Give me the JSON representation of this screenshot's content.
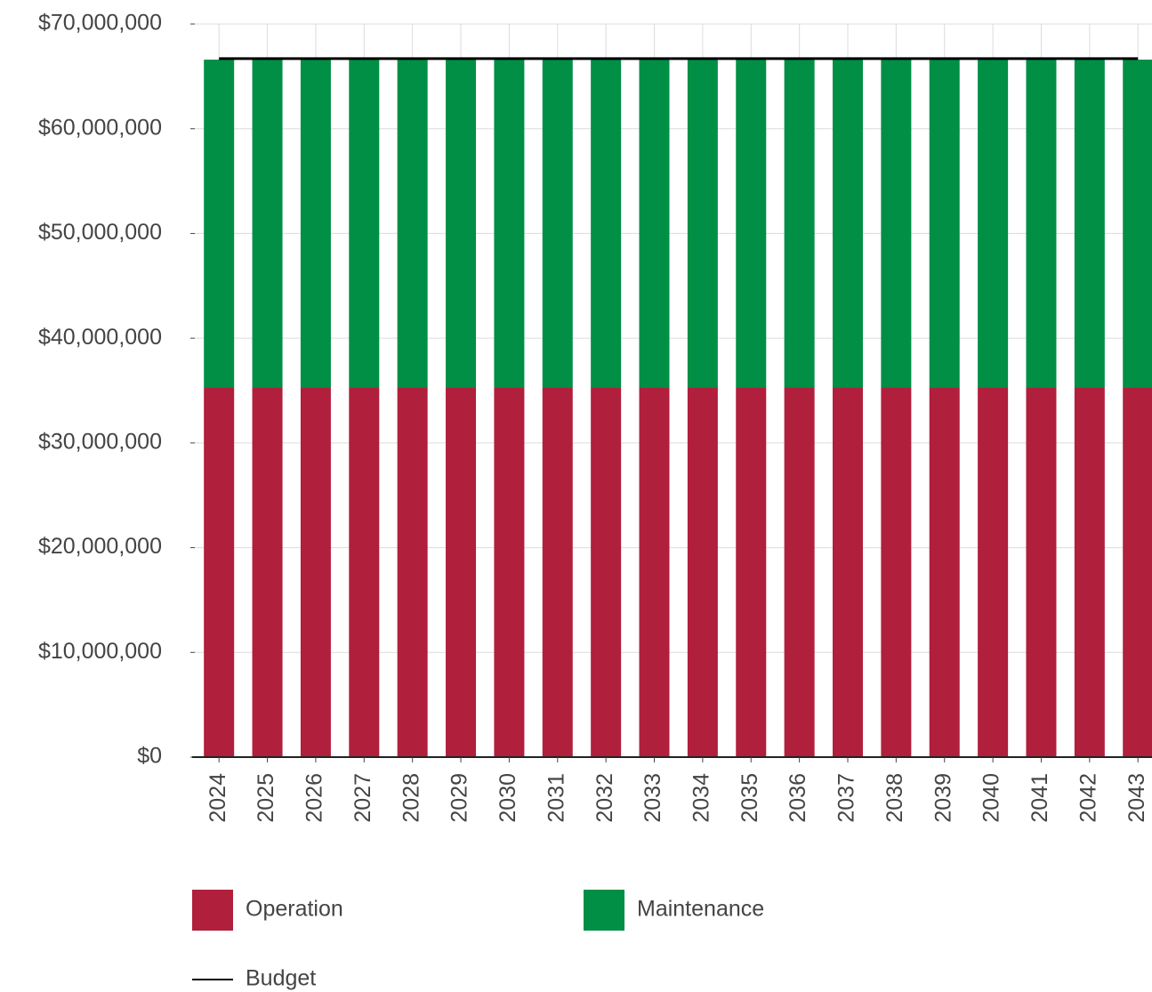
{
  "chart_data": {
    "type": "bar",
    "stacked": true,
    "categories": [
      "2024",
      "2025",
      "2026",
      "2027",
      "2028",
      "2029",
      "2030",
      "2031",
      "2032",
      "2033",
      "2034",
      "2035",
      "2036",
      "2037",
      "2038",
      "2039",
      "2040",
      "2041",
      "2042",
      "2043"
    ],
    "series": [
      {
        "name": "Operation",
        "color": "#b01f3c",
        "values": [
          35300000,
          35300000,
          35300000,
          35300000,
          35300000,
          35300000,
          35300000,
          35300000,
          35300000,
          35300000,
          35300000,
          35300000,
          35300000,
          35300000,
          35300000,
          35300000,
          35300000,
          35300000,
          35300000,
          35300000
        ]
      },
      {
        "name": "Maintenance",
        "color": "#008f45",
        "values": [
          31300000,
          31300000,
          31300000,
          31300000,
          31300000,
          31300000,
          31300000,
          31300000,
          31300000,
          31300000,
          31300000,
          31300000,
          31300000,
          31300000,
          31300000,
          31300000,
          31300000,
          31300000,
          31300000,
          31300000
        ]
      },
      {
        "name": "Budget",
        "type": "line",
        "color": "#000000",
        "values": [
          66700000,
          66700000,
          66700000,
          66700000,
          66700000,
          66700000,
          66700000,
          66700000,
          66700000,
          66700000,
          66700000,
          66700000,
          66700000,
          66700000,
          66700000,
          66700000,
          66700000,
          66700000,
          66700000,
          66700000
        ]
      }
    ],
    "ylim": [
      0,
      70000000
    ],
    "yticks": [
      {
        "value": 0,
        "label": "$0"
      },
      {
        "value": 10000000,
        "label": "$10,000,000"
      },
      {
        "value": 20000000,
        "label": "$20,000,000"
      },
      {
        "value": 30000000,
        "label": "$30,000,000"
      },
      {
        "value": 40000000,
        "label": "$40,000,000"
      },
      {
        "value": 50000000,
        "label": "$50,000,000"
      },
      {
        "value": 60000000,
        "label": "$60,000,000"
      },
      {
        "value": 70000000,
        "label": "$70,000,000"
      }
    ],
    "grid": true,
    "legend": "bottom-left"
  }
}
